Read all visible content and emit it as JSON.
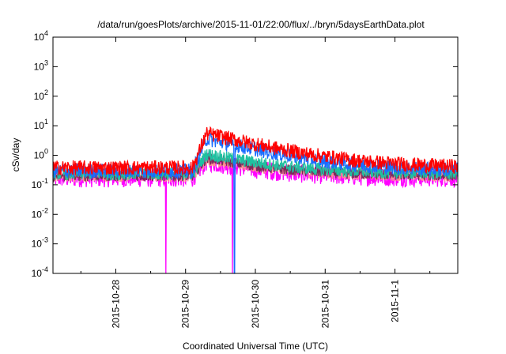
{
  "chart_data": {
    "type": "line",
    "title": "/data/run/goesPlots/archive/2015-11-01/22:00/flux/../bryn/5daysEarthData.plot",
    "xlabel": "Coordinated Universal Time (UTC)",
    "ylabel": "cSv/day",
    "yscale": "log",
    "ylim": [
      0.0001,
      10000
    ],
    "y_ticks": [
      {
        "value": 0.0001,
        "base": "10",
        "exp": "-4"
      },
      {
        "value": 0.001,
        "base": "10",
        "exp": "-3"
      },
      {
        "value": 0.01,
        "base": "10",
        "exp": "-2"
      },
      {
        "value": 0.1,
        "base": "10",
        "exp": "-1"
      },
      {
        "value": 1,
        "base": "10",
        "exp": "0"
      },
      {
        "value": 10,
        "base": "10",
        "exp": "1"
      },
      {
        "value": 100,
        "base": "10",
        "exp": "2"
      },
      {
        "value": 1000,
        "base": "10",
        "exp": "3"
      },
      {
        "value": 10000,
        "base": "10",
        "exp": "4"
      }
    ],
    "x_domain_days": [
      26.1,
      31.9
    ],
    "x_ticks": [
      {
        "day": 27,
        "label": "2015-10-28"
      },
      {
        "day": 28,
        "label": "2015-10-29"
      },
      {
        "day": 29,
        "label": "2015-10-30"
      },
      {
        "day": 30,
        "label": "2015-10-31"
      },
      {
        "day": 31,
        "label": "2015-11-1"
      }
    ],
    "grid": false,
    "series": [
      {
        "color": "#ff0000",
        "base": 0.38,
        "peak": 5.5,
        "noise": 0.25
      },
      {
        "color": "#1a6cff",
        "base": 0.3,
        "peak": 3.6,
        "noise": 0.25
      },
      {
        "color": "#20c0a0",
        "base": 0.24,
        "peak": 1.1,
        "noise": 0.22
      },
      {
        "color": "#7b2a5a",
        "base": 0.2,
        "peak": 0.8,
        "noise": 0.18
      },
      {
        "color": "#ff9090",
        "base": 0.19,
        "peak": 0.7,
        "noise": 0.18
      },
      {
        "color": "#ff00ff",
        "base": 0.17,
        "peak": 0.6,
        "noise": 0.32
      }
    ],
    "event_rise_start_day": 28.1,
    "event_peak_day": 28.3,
    "dropouts": [
      {
        "day": 27.72,
        "series": "#ff00ff"
      },
      {
        "day": 28.67,
        "series": "#ff00ff"
      },
      {
        "day": 28.7,
        "series": "#1a6cff"
      }
    ]
  }
}
